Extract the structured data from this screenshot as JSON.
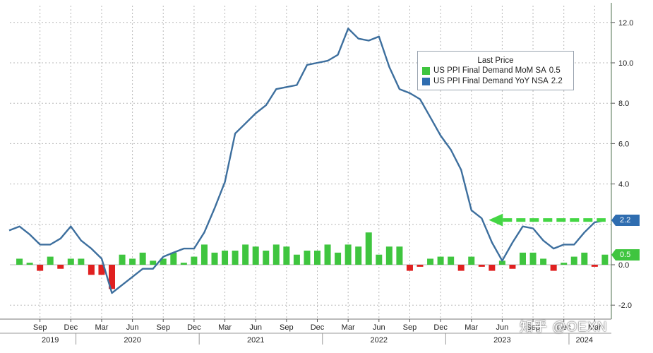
{
  "chart_data": {
    "type": "bar+line",
    "title": "",
    "xlabel": "",
    "ylabel": "",
    "ylim": [
      -2.5,
      12.5
    ],
    "y_ticks": [
      -2.0,
      0.0,
      0.5,
      2.2,
      4.0,
      6.0,
      8.0,
      10.0,
      12.0
    ],
    "y_tick_labels": [
      "-2.0",
      "0.0",
      "",
      "",
      "4.0",
      "6.0",
      "8.0",
      "10.0",
      "12.0"
    ],
    "grid": true,
    "legend_position": "top-right",
    "legend_title": "Last Price",
    "x_start": "2019-07",
    "x_end": "2024-03",
    "month_tick_labels": [
      {
        "date": "2019-09",
        "label": "Sep"
      },
      {
        "date": "2019-12",
        "label": "Dec"
      },
      {
        "date": "2020-03",
        "label": "Mar"
      },
      {
        "date": "2020-06",
        "label": "Jun"
      },
      {
        "date": "2020-09",
        "label": "Sep"
      },
      {
        "date": "2020-12",
        "label": "Dec"
      },
      {
        "date": "2021-03",
        "label": "Mar"
      },
      {
        "date": "2021-06",
        "label": "Jun"
      },
      {
        "date": "2021-09",
        "label": "Sep"
      },
      {
        "date": "2021-12",
        "label": "Dec"
      },
      {
        "date": "2022-03",
        "label": "Mar"
      },
      {
        "date": "2022-06",
        "label": "Jun"
      },
      {
        "date": "2022-09",
        "label": "Sep"
      },
      {
        "date": "2022-12",
        "label": "Dec"
      },
      {
        "date": "2023-03",
        "label": "Mar"
      },
      {
        "date": "2023-06",
        "label": "Jun"
      },
      {
        "date": "2023-09",
        "label": "Sep"
      },
      {
        "date": "2023-12",
        "label": "Dec"
      },
      {
        "date": "2024-03",
        "label": "Mar"
      }
    ],
    "year_labels": [
      {
        "date": "2019-10",
        "label": "2019"
      },
      {
        "date": "2020-06",
        "label": "2020"
      },
      {
        "date": "2021-06",
        "label": "2021"
      },
      {
        "date": "2022-06",
        "label": "2022"
      },
      {
        "date": "2023-06",
        "label": "2023"
      },
      {
        "date": "2024-02",
        "label": "2024"
      }
    ],
    "series": [
      {
        "name": "US PPI Final Demand MoM SA",
        "type": "bar",
        "color": "#3fc53f",
        "negative_color": "#e02020",
        "last_value": "0.5",
        "values": [
          {
            "date": "2019-07",
            "value": 0.3
          },
          {
            "date": "2019-08",
            "value": 0.1
          },
          {
            "date": "2019-09",
            "value": -0.3
          },
          {
            "date": "2019-10",
            "value": 0.4
          },
          {
            "date": "2019-11",
            "value": -0.2
          },
          {
            "date": "2019-12",
            "value": 0.3
          },
          {
            "date": "2020-01",
            "value": 0.3
          },
          {
            "date": "2020-02",
            "value": -0.5
          },
          {
            "date": "2020-03",
            "value": -0.5
          },
          {
            "date": "2020-04",
            "value": -1.2
          },
          {
            "date": "2020-05",
            "value": 0.5
          },
          {
            "date": "2020-06",
            "value": 0.3
          },
          {
            "date": "2020-07",
            "value": 0.6
          },
          {
            "date": "2020-08",
            "value": 0.2
          },
          {
            "date": "2020-09",
            "value": 0.3
          },
          {
            "date": "2020-10",
            "value": 0.6
          },
          {
            "date": "2020-11",
            "value": 0.1
          },
          {
            "date": "2020-12",
            "value": 0.4
          },
          {
            "date": "2021-01",
            "value": 1.0
          },
          {
            "date": "2021-02",
            "value": 0.6
          },
          {
            "date": "2021-03",
            "value": 0.7
          },
          {
            "date": "2021-04",
            "value": 0.7
          },
          {
            "date": "2021-05",
            "value": 1.0
          },
          {
            "date": "2021-06",
            "value": 0.9
          },
          {
            "date": "2021-07",
            "value": 0.7
          },
          {
            "date": "2021-08",
            "value": 1.0
          },
          {
            "date": "2021-09",
            "value": 0.9
          },
          {
            "date": "2021-10",
            "value": 0.5
          },
          {
            "date": "2021-11",
            "value": 0.7
          },
          {
            "date": "2021-12",
            "value": 0.7
          },
          {
            "date": "2022-01",
            "value": 1.0
          },
          {
            "date": "2022-02",
            "value": 0.6
          },
          {
            "date": "2022-03",
            "value": 1.0
          },
          {
            "date": "2022-04",
            "value": 0.9
          },
          {
            "date": "2022-05",
            "value": 1.6
          },
          {
            "date": "2022-06",
            "value": 0.5
          },
          {
            "date": "2022-07",
            "value": 0.9
          },
          {
            "date": "2022-08",
            "value": 0.9
          },
          {
            "date": "2022-09",
            "value": -0.3
          },
          {
            "date": "2022-10",
            "value": -0.1
          },
          {
            "date": "2022-11",
            "value": 0.3
          },
          {
            "date": "2022-12",
            "value": 0.4
          },
          {
            "date": "2023-01",
            "value": 0.4
          },
          {
            "date": "2023-02",
            "value": -0.3
          },
          {
            "date": "2023-03",
            "value": 0.4
          },
          {
            "date": "2023-04",
            "value": -0.1
          },
          {
            "date": "2023-05",
            "value": -0.3
          },
          {
            "date": "2023-06",
            "value": 0.2
          },
          {
            "date": "2023-07",
            "value": -0.2
          },
          {
            "date": "2023-08",
            "value": 0.6
          },
          {
            "date": "2023-09",
            "value": 0.6
          },
          {
            "date": "2023-10",
            "value": 0.3
          },
          {
            "date": "2023-11",
            "value": -0.3
          },
          {
            "date": "2023-12",
            "value": 0.1
          },
          {
            "date": "2024-01",
            "value": 0.4
          },
          {
            "date": "2024-02",
            "value": 0.6
          },
          {
            "date": "2024-03",
            "value": -0.1
          },
          {
            "date": "2024-04",
            "value": 0.5
          }
        ]
      },
      {
        "name": "US PPI Final Demand YoY NSA",
        "type": "line",
        "color": "#3d6f9e",
        "last_value": "2.2",
        "values": [
          {
            "date": "2019-06",
            "value": 1.7
          },
          {
            "date": "2019-07",
            "value": 1.9
          },
          {
            "date": "2019-08",
            "value": 1.5
          },
          {
            "date": "2019-09",
            "value": 1.0
          },
          {
            "date": "2019-10",
            "value": 1.0
          },
          {
            "date": "2019-11",
            "value": 1.3
          },
          {
            "date": "2019-12",
            "value": 1.9
          },
          {
            "date": "2020-01",
            "value": 1.2
          },
          {
            "date": "2020-02",
            "value": 0.8
          },
          {
            "date": "2020-03",
            "value": 0.3
          },
          {
            "date": "2020-04",
            "value": -1.4
          },
          {
            "date": "2020-05",
            "value": -1.0
          },
          {
            "date": "2020-06",
            "value": -0.6
          },
          {
            "date": "2020-07",
            "value": -0.2
          },
          {
            "date": "2020-08",
            "value": -0.2
          },
          {
            "date": "2020-09",
            "value": 0.4
          },
          {
            "date": "2020-10",
            "value": 0.6
          },
          {
            "date": "2020-11",
            "value": 0.8
          },
          {
            "date": "2020-12",
            "value": 0.8
          },
          {
            "date": "2021-01",
            "value": 1.6
          },
          {
            "date": "2021-02",
            "value": 2.8
          },
          {
            "date": "2021-03",
            "value": 4.1
          },
          {
            "date": "2021-04",
            "value": 6.5
          },
          {
            "date": "2021-05",
            "value": 7.0
          },
          {
            "date": "2021-06",
            "value": 7.5
          },
          {
            "date": "2021-07",
            "value": 7.9
          },
          {
            "date": "2021-08",
            "value": 8.7
          },
          {
            "date": "2021-09",
            "value": 8.8
          },
          {
            "date": "2021-10",
            "value": 8.9
          },
          {
            "date": "2021-11",
            "value": 9.9
          },
          {
            "date": "2021-12",
            "value": 10.0
          },
          {
            "date": "2022-01",
            "value": 10.1
          },
          {
            "date": "2022-02",
            "value": 10.4
          },
          {
            "date": "2022-03",
            "value": 11.7
          },
          {
            "date": "2022-04",
            "value": 11.2
          },
          {
            "date": "2022-05",
            "value": 11.1
          },
          {
            "date": "2022-06",
            "value": 11.3
          },
          {
            "date": "2022-07",
            "value": 9.8
          },
          {
            "date": "2022-08",
            "value": 8.7
          },
          {
            "date": "2022-09",
            "value": 8.5
          },
          {
            "date": "2022-10",
            "value": 8.2
          },
          {
            "date": "2022-11",
            "value": 7.3
          },
          {
            "date": "2022-12",
            "value": 6.4
          },
          {
            "date": "2023-01",
            "value": 5.7
          },
          {
            "date": "2023-02",
            "value": 4.7
          },
          {
            "date": "2023-03",
            "value": 2.7
          },
          {
            "date": "2023-04",
            "value": 2.3
          },
          {
            "date": "2023-05",
            "value": 1.1
          },
          {
            "date": "2023-06",
            "value": 0.2
          },
          {
            "date": "2023-07",
            "value": 1.1
          },
          {
            "date": "2023-08",
            "value": 1.9
          },
          {
            "date": "2023-09",
            "value": 1.8
          },
          {
            "date": "2023-10",
            "value": 1.2
          },
          {
            "date": "2023-11",
            "value": 0.8
          },
          {
            "date": "2023-12",
            "value": 1.0
          },
          {
            "date": "2024-01",
            "value": 1.0
          },
          {
            "date": "2024-02",
            "value": 1.6
          },
          {
            "date": "2024-03",
            "value": 2.1
          },
          {
            "date": "2024-04",
            "value": 2.2
          }
        ]
      }
    ],
    "annotation": {
      "type": "dashed-arrow",
      "color": "#44d644",
      "value": 2.2,
      "points_to": "2023-04",
      "from": "2024-04"
    },
    "watermark": "知乎 @OEXN"
  }
}
